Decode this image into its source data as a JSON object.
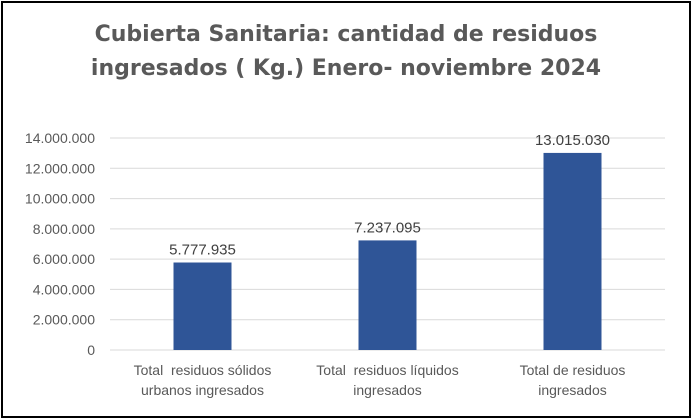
{
  "chart_data": {
    "type": "bar",
    "title_lines": [
      "Cubierta Sanitaria: cantidad de residuos",
      "ingresados ( Kg.) Enero- noviembre 2024"
    ],
    "categories": [
      [
        "Total  residuos sólidos",
        "urbanos ingresados"
      ],
      [
        "Total  residuos líquidos",
        "ingresados"
      ],
      [
        "Total de residuos",
        "ingresados"
      ]
    ],
    "values": [
      5777935,
      7237095,
      13015030
    ],
    "data_labels": [
      "5.777.935",
      "7.237.095",
      "13.015.030"
    ],
    "ylim": [
      0,
      14000000
    ],
    "y_ticks": [
      0,
      2000000,
      4000000,
      6000000,
      8000000,
      10000000,
      12000000,
      14000000
    ],
    "y_tick_labels": [
      "0",
      "2.000.000",
      "4.000.000",
      "6.000.000",
      "8.000.000",
      "10.000.000",
      "12.000.000",
      "14.000.000"
    ],
    "grid": true,
    "legend": "none",
    "colors": {
      "bar": "#2F5597",
      "grid": "#D9D9D9",
      "text": "#595959"
    }
  }
}
